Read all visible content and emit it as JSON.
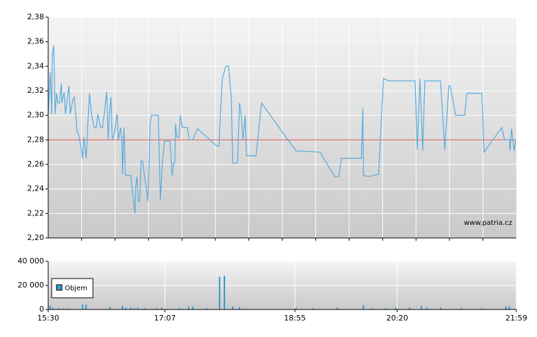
{
  "chart_data": [
    {
      "type": "line",
      "xlim": [
        0,
        389
      ],
      "ylim": [
        2.2,
        2.38
      ],
      "yticks": [
        {
          "value": 2.2,
          "label": "2,20"
        },
        {
          "value": 2.22,
          "label": "2,22"
        },
        {
          "value": 2.24,
          "label": "2,24"
        },
        {
          "value": 2.26,
          "label": "2,26"
        },
        {
          "value": 2.28,
          "label": "2,28"
        },
        {
          "value": 2.3,
          "label": "2,30"
        },
        {
          "value": 2.32,
          "label": "2,32"
        },
        {
          "value": 2.34,
          "label": "2,34"
        },
        {
          "value": 2.36,
          "label": "2,36"
        },
        {
          "value": 2.38,
          "label": "2,38"
        }
      ],
      "grid": true,
      "reference_line": {
        "value": 2.28,
        "color": "#e05050"
      },
      "watermark": "www.patria.cz",
      "series": [
        {
          "color": "#55aadd",
          "x": [
            0,
            1.7,
            2.9,
            3.4,
            4.6,
            5.1,
            5.7,
            6.9,
            8.0,
            9.2,
            10.9,
            11.4,
            13.2,
            14.3,
            15.4,
            17.2,
            18.3,
            20.6,
            21.7,
            22.9,
            24.0,
            25.2,
            26.9,
            28.6,
            29.7,
            31.5,
            32.6,
            34.3,
            36.0,
            38.3,
            40.0,
            41.2,
            43.5,
            45.2,
            46.9,
            48.6,
            49.8,
            50.9,
            52.1,
            53.2,
            54.9,
            57.2,
            58.3,
            60.1,
            61.2,
            61.8,
            62.9,
            64.1,
            67.5,
            68.6,
            70.4,
            72.1,
            72.6,
            73.8,
            74.9,
            76.1,
            77.2,
            78.4,
            82.9,
            84.7,
            85.8,
            91.5,
            93.2,
            95.0,
            96.7,
            101.2,
            103.0,
            104.1,
            105.2,
            105.8,
            107.0,
            108.7,
            109.8,
            111.5,
            115.5,
            117.3,
            120.1,
            124.1,
            140.1,
            141.9,
            143.0,
            144.7,
            147.6,
            149.9,
            152.2,
            153.3,
            157.3,
            159.0,
            160.2,
            161.9,
            163.6,
            164.7,
            172.7,
            177.3,
            205.9,
            225.9,
            237.9,
            241.4,
            243.7,
            260.3,
            261.4,
            262.0,
            266.0,
            274.6,
            278.6,
            283.1,
            304.9,
            306.6,
            308.9,
            311.2,
            312.9,
            326.0,
            329.5,
            332.9,
            334.0,
            338.6,
            346.1,
            347.8,
            360.4,
            362.1,
            376.9,
            379.2,
            383.2,
            383.8,
            385.0,
            387.2,
            388.4
          ],
          "values": [
            2.301,
            2.335,
            2.301,
            2.349,
            2.357,
            2.335,
            2.301,
            2.318,
            2.31,
            2.31,
            2.326,
            2.31,
            2.319,
            2.301,
            2.31,
            2.324,
            2.301,
            2.313,
            2.315,
            2.301,
            2.286,
            2.285,
            2.276,
            2.265,
            2.282,
            2.265,
            2.287,
            2.318,
            2.301,
            2.29,
            2.29,
            2.301,
            2.29,
            2.29,
            2.304,
            2.319,
            2.28,
            2.301,
            2.315,
            2.28,
            2.285,
            2.301,
            2.28,
            2.29,
            2.28,
            2.252,
            2.29,
            2.251,
            2.251,
            2.251,
            2.234,
            2.22,
            2.24,
            2.25,
            2.23,
            2.23,
            2.263,
            2.263,
            2.23,
            2.293,
            2.3,
            2.3,
            2.231,
            2.263,
            2.279,
            2.279,
            2.251,
            2.261,
            2.261,
            2.293,
            2.282,
            2.282,
            2.3,
            2.29,
            2.29,
            2.28,
            2.28,
            2.289,
            2.275,
            2.275,
            2.299,
            2.33,
            2.34,
            2.34,
            2.313,
            2.261,
            2.261,
            2.31,
            2.303,
            2.28,
            2.3,
            2.267,
            2.267,
            2.31,
            2.271,
            2.27,
            2.25,
            2.25,
            2.265,
            2.265,
            2.306,
            2.251,
            2.25,
            2.252,
            2.33,
            2.328,
            2.328,
            2.272,
            2.33,
            2.271,
            2.328,
            2.328,
            2.272,
            2.324,
            2.324,
            2.3,
            2.3,
            2.318,
            2.318,
            2.27,
            2.29,
            2.28,
            2.28,
            2.271,
            2.289,
            2.271,
            2.28
          ]
        }
      ]
    },
    {
      "type": "bar",
      "xlim": [
        0,
        389
      ],
      "xticks": [
        {
          "value": 0,
          "label": "15:30"
        },
        {
          "value": 97,
          "label": "17:07"
        },
        {
          "value": 205,
          "label": "18:55"
        },
        {
          "value": 290,
          "label": "20:20"
        },
        {
          "value": 389,
          "label": "21:59"
        }
      ],
      "ylim": [
        0,
        40000
      ],
      "yticks": [
        0,
        {
          "value": 20000,
          "label": "20 000"
        },
        {
          "value": 40000,
          "label": "40 000"
        }
      ],
      "grid": true,
      "legend": "upper left",
      "series": [
        {
          "name": "Objem",
          "color": "#3399cc",
          "x": [
            1.7,
            4.0,
            8.6,
            12.0,
            17.2,
            28.6,
            31.5,
            51.5,
            61.8,
            64.6,
            68.6,
            71.5,
            74.4,
            80.1,
            90.4,
            94.4,
            108.7,
            116.7,
            120.1,
            131.6,
            142.4,
            146.4,
            153.3,
            159.0,
            205.9,
            220.2,
            240.2,
            261.9,
            268.7,
            280.3,
            288.8,
            300.3,
            310.0,
            314.6,
            326.0,
            343.2,
            360.4,
            380.4,
            383.2
          ],
          "values": [
            3000,
            1500,
            1000,
            1000,
            800,
            4000,
            4000,
            2000,
            3000,
            1500,
            1500,
            1000,
            1500,
            1000,
            1000,
            1500,
            1000,
            2500,
            2500,
            1000,
            27000,
            28000,
            2500,
            2000,
            1500,
            1000,
            1500,
            3500,
            1000,
            1000,
            1500,
            1500,
            3000,
            1500,
            1500,
            1000,
            800,
            2500,
            2500
          ]
        }
      ]
    }
  ]
}
